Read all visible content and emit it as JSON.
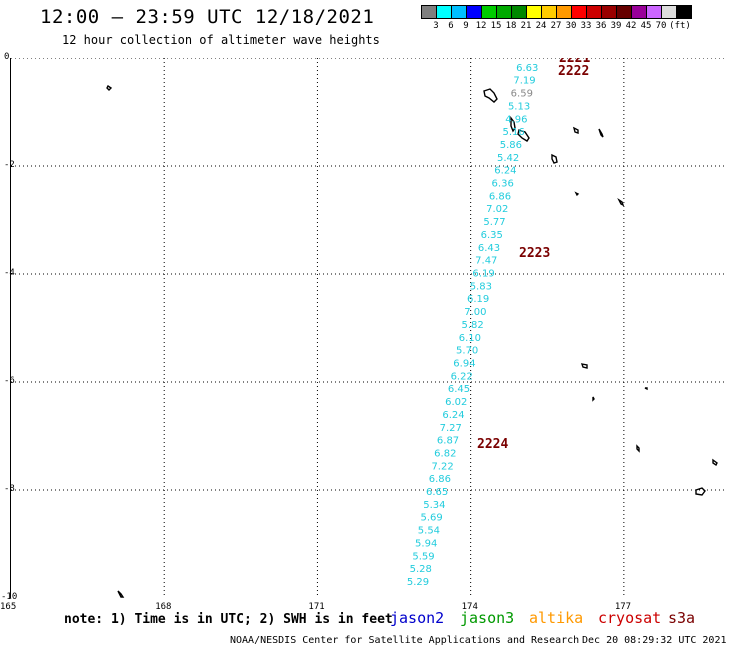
{
  "header": {
    "title": "12:00 – 23:59 UTC 12/18/2021",
    "subtitle": "12 hour collection of altimeter wave heights"
  },
  "legend": {
    "colors": [
      "#7f7f7f",
      "#00ffff",
      "#00bfff",
      "#0000ff",
      "#00cc00",
      "#00aa00",
      "#008800",
      "#ffff00",
      "#ffcc00",
      "#ff9900",
      "#ff0000",
      "#cc0000",
      "#990000",
      "#660000",
      "#990099",
      "#cc66ff",
      "#dddddd",
      "#000000"
    ],
    "labels": [
      "3",
      "6",
      "9",
      "12",
      "15",
      "18",
      "21",
      "24",
      "27",
      "30",
      "33",
      "36",
      "39",
      "42",
      "45",
      "70",
      "(ft)"
    ]
  },
  "map": {
    "lon_range": [
      165,
      179
    ],
    "lat_range": [
      -10,
      0
    ],
    "lon_ticks": [
      "165",
      "168",
      "171",
      "174",
      "177"
    ],
    "lat_ticks": [
      "0",
      "-2",
      "-4",
      "-6",
      "-8",
      "-10"
    ],
    "track_color": "#22ccdd",
    "pass_color": "#7a0000",
    "track_values": [
      "6.65",
      "6.63",
      "7.19",
      "6.59",
      "5.13",
      "4.96",
      "5.16",
      "5.86",
      "5.42",
      "6.24",
      "6.36",
      "6.86",
      "7.02",
      "5.77",
      "6.35",
      "6.43",
      "7.47",
      "6.19",
      "5.83",
      "6.19",
      "7.00",
      "5.82",
      "6.10",
      "5.70",
      "6.94",
      "6.22",
      "6.45",
      "6.02",
      "6.24",
      "7.27",
      "6.87",
      "6.82",
      "7.22",
      "6.86",
      "6.65",
      "5.34",
      "5.69",
      "5.54",
      "5.94",
      "5.59",
      "5.28",
      "5.29"
    ],
    "passes": [
      "2221",
      "2222",
      "2223",
      "2224"
    ]
  },
  "footer": {
    "note": "note: 1) Time is in UTC; 2) SWH is in feet",
    "satellites": [
      {
        "name": "jason2",
        "color": "#0000cc"
      },
      {
        "name": "jason3",
        "color": "#009900"
      },
      {
        "name": "altika",
        "color": "#ff9900"
      },
      {
        "name": "cryosat",
        "color": "#cc0000"
      },
      {
        "name": "s3a",
        "color": "#7a0000"
      }
    ],
    "credit": "NOAA/NESDIS Center for Satellite Applications and Research",
    "timestamp": "Dec 20 08:29:32 UTC 2021"
  }
}
